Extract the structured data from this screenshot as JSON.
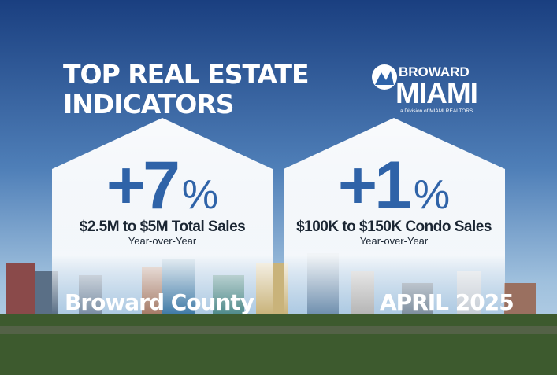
{
  "header": {
    "title_lines": [
      "TOP REAL ESTATE",
      "INDICATORS"
    ]
  },
  "logo": {
    "top": "BROWARD",
    "main": "MIAMI",
    "tagline": "a Division of MIAMI REALTORS"
  },
  "cards": [
    {
      "value": "+7",
      "unit": "%",
      "label": "$2.5M to $5M Total Sales",
      "sublabel": "Year-over-Year",
      "footer": "Broward County"
    },
    {
      "value": "+1",
      "unit": "%",
      "label": "$100K to $150K Condo Sales",
      "sublabel": "Year-over-Year",
      "footer": "APRIL 2025"
    }
  ]
}
